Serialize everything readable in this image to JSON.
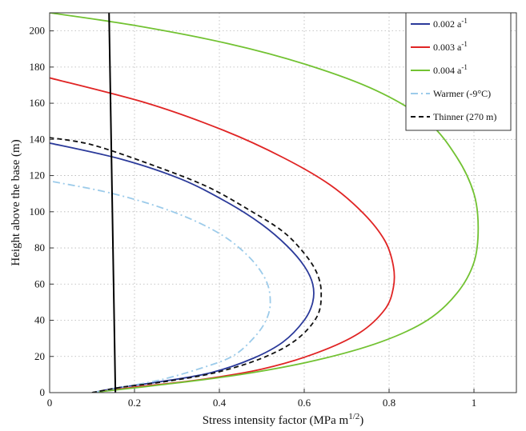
{
  "chart_data": {
    "type": "line",
    "title": "",
    "xlabel": "Stress intensity factor (MPa m",
    "xlabel_sup": "1/2",
    "xlabel_end": ")",
    "ylabel": "Height above the base (m)",
    "xlim": [
      0,
      1.1
    ],
    "ylim": [
      0,
      210
    ],
    "xticks": [
      "0",
      "0.2",
      "0.4",
      "0.6",
      "0.8",
      "1"
    ],
    "yticks": [
      "0",
      "20",
      "40",
      "60",
      "80",
      "100",
      "120",
      "140",
      "160",
      "180",
      "200"
    ],
    "grid": true,
    "legend_position": "top-right",
    "series": [
      {
        "name": "0.002 a",
        "name_sup": "-1",
        "color": "#2b3a9a",
        "dash": "solid",
        "x": [
          0.1,
          0.17,
          0.26,
          0.38,
          0.48,
          0.55,
          0.6,
          0.62,
          0.62,
          0.6,
          0.56,
          0.5,
          0.42,
          0.31,
          0.17,
          0.0
        ],
        "y": [
          0,
          3,
          6,
          11,
          19,
          28,
          40,
          50,
          60,
          70,
          81,
          93,
          105,
          118,
          129,
          138
        ]
      },
      {
        "name": "0.003 a",
        "name_sup": "-1",
        "color": "#e02424",
        "dash": "solid",
        "x": [
          0.1,
          0.2,
          0.35,
          0.5,
          0.63,
          0.73,
          0.79,
          0.81,
          0.81,
          0.79,
          0.74,
          0.66,
          0.55,
          0.41,
          0.23,
          0.0
        ],
        "y": [
          0,
          3,
          7,
          13,
          22,
          33,
          46,
          58,
          70,
          84,
          99,
          115,
          130,
          145,
          160,
          174
        ]
      },
      {
        "name": "0.004 a",
        "name_sup": "-1",
        "color": "#72c232",
        "dash": "solid",
        "x": [
          0.1,
          0.25,
          0.45,
          0.63,
          0.78,
          0.89,
          0.96,
          1.0,
          1.01,
          1.0,
          0.96,
          0.89,
          0.77,
          0.61,
          0.42,
          0.2,
          0.0
        ],
        "y": [
          0,
          4,
          10,
          18,
          28,
          40,
          55,
          72,
          91,
          110,
          130,
          150,
          167,
          181,
          193,
          203,
          210
        ]
      },
      {
        "name": "Warmer (-9°C)",
        "color": "#9ccbea",
        "dash": "dashdot",
        "x": [
          0.1,
          0.17,
          0.26,
          0.35,
          0.43,
          0.48,
          0.51,
          0.52,
          0.51,
          0.47,
          0.4,
          0.29,
          0.15,
          0.0
        ],
        "y": [
          0,
          3,
          7,
          13,
          20,
          30,
          40,
          50,
          62,
          75,
          88,
          100,
          110,
          117
        ]
      },
      {
        "name": "Thinner (270 m)",
        "color": "#111111",
        "dash": "dashed",
        "x": [
          0.1,
          0.17,
          0.27,
          0.39,
          0.5,
          0.58,
          0.63,
          0.64,
          0.63,
          0.6,
          0.55,
          0.47,
          0.37,
          0.24,
          0.1,
          0.0
        ],
        "y": [
          0,
          3,
          6,
          11,
          19,
          29,
          42,
          55,
          66,
          77,
          89,
          101,
          114,
          126,
          137,
          141
        ]
      }
    ],
    "reference_line": {
      "color": "#000000",
      "x": [
        0.14,
        0.155
      ],
      "y": [
        210,
        0
      ]
    }
  }
}
